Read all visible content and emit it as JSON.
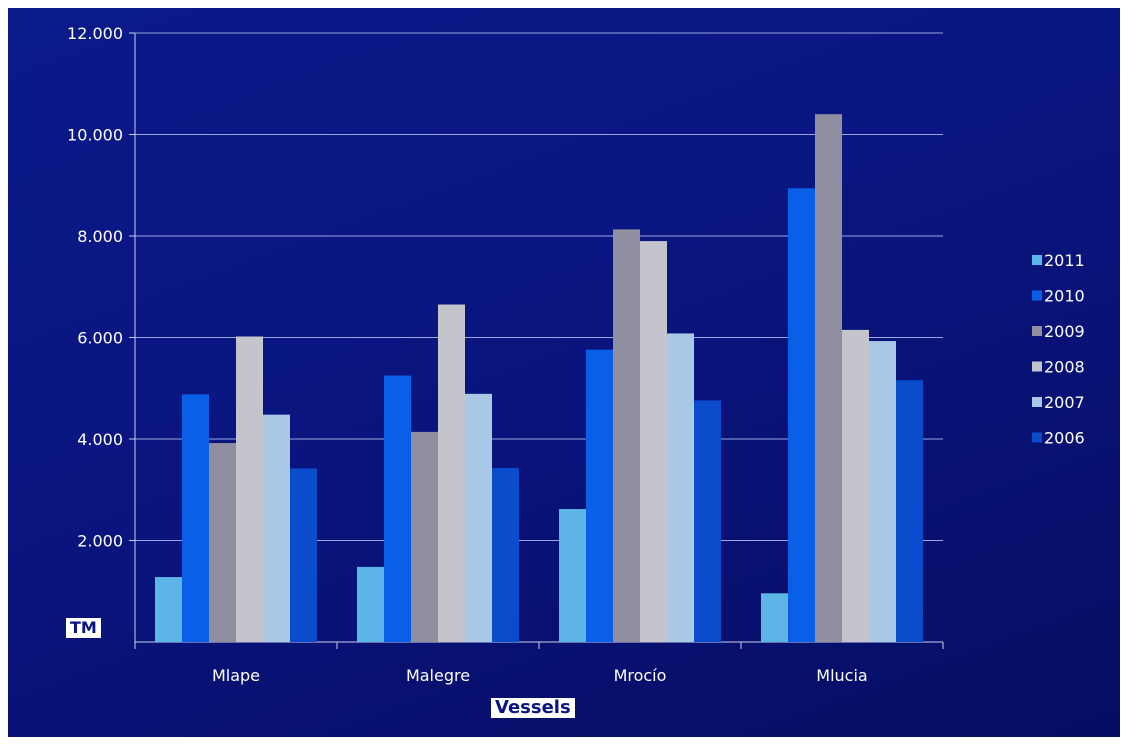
{
  "chart_data": {
    "type": "bar",
    "categories": [
      "Mlape",
      "Malegre",
      "Mrocío",
      "Mlucia"
    ],
    "series": [
      {
        "name": "2011",
        "color": "#5cb5e6",
        "values": [
          1280,
          1480,
          2620,
          960
        ]
      },
      {
        "name": "2010",
        "color": "#0a5fe8",
        "values": [
          4880,
          5250,
          5760,
          8940
        ]
      },
      {
        "name": "2009",
        "color": "#8f8fa0",
        "values": [
          3920,
          4140,
          8130,
          10400
        ]
      },
      {
        "name": "2008",
        "color": "#c4c4cc",
        "values": [
          6020,
          6650,
          7900,
          6150
        ]
      },
      {
        "name": "2007",
        "color": "#a9c8e6",
        "values": [
          4480,
          4890,
          6080,
          5930
        ]
      },
      {
        "name": "2006",
        "color": "#0a4ccc",
        "values": [
          3420,
          3430,
          4760,
          5160
        ]
      }
    ],
    "y_ticks": [
      "12.000",
      "10.000",
      "8.000",
      "6.000",
      "4.000",
      "2.000"
    ],
    "ylim": [
      0,
      12000
    ],
    "y_unit": "TM",
    "xlabel": "Vessels",
    "legend_position": "right",
    "grid": true
  }
}
